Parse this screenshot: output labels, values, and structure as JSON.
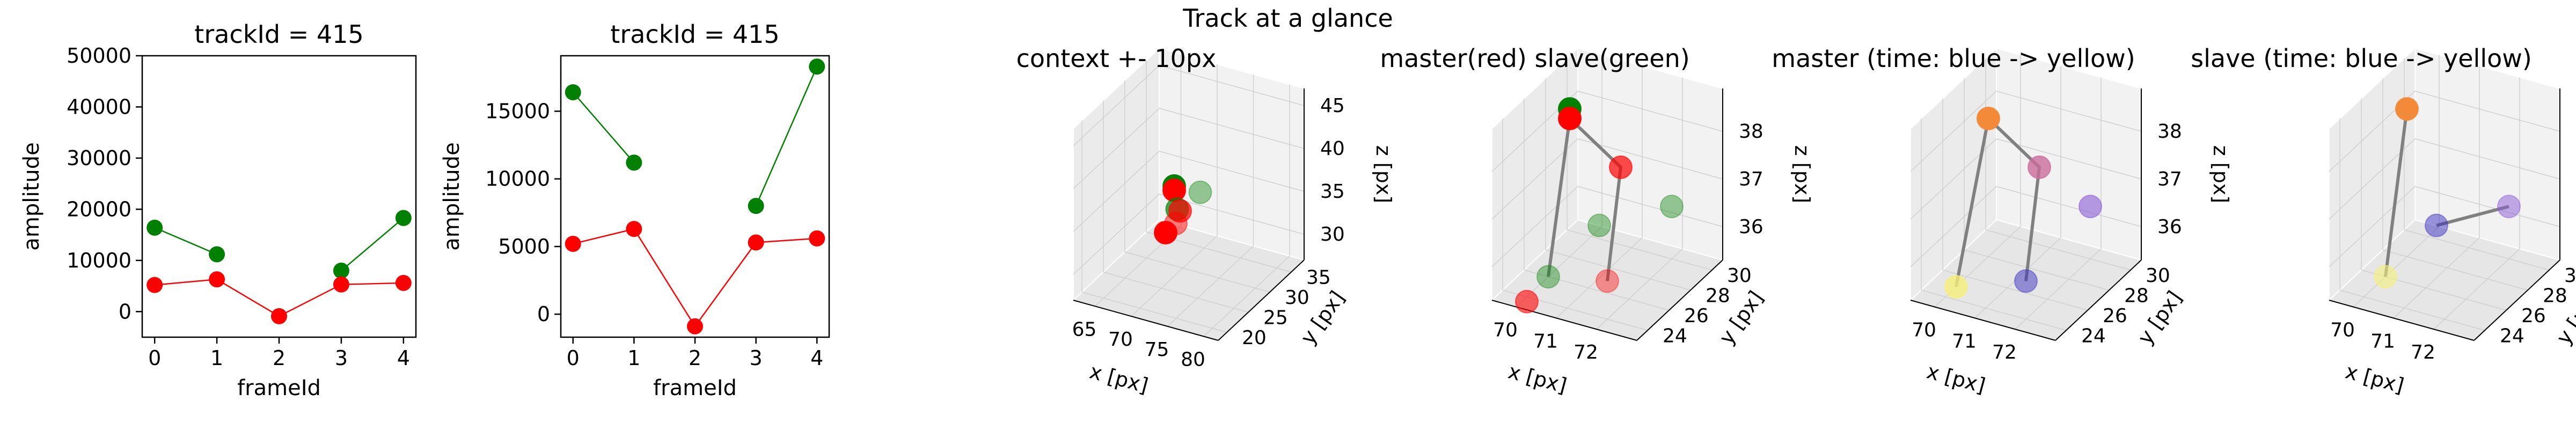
{
  "figure": {
    "suptitle": "Track at a glance"
  },
  "colors": {
    "green": "#008000",
    "red": "#ff0000",
    "line_gray": "#808080",
    "pane_light": "#f2f2f2",
    "pane_mid": "#e6e6e6",
    "pane_dark": "#ebebeb",
    "grid": "#d0d0d0",
    "time_colormap": [
      "#3b2fc0",
      "#8a5ad6",
      "#c96b9a",
      "#f28a3a",
      "#f5f07a"
    ]
  },
  "chart_data": [
    {
      "type": "line",
      "title": "trackId = 415",
      "xlabel": "frameId",
      "ylabel": "amplitude",
      "xlim": [
        -0.2,
        4.2
      ],
      "ylim": [
        -5000,
        50000
      ],
      "xticks": [
        0,
        1,
        2,
        3,
        4
      ],
      "yticks": [
        0,
        10000,
        20000,
        30000,
        40000,
        50000
      ],
      "grid": false,
      "series": [
        {
          "color": "green",
          "segments": [
            [
              [
                0,
                16400
              ],
              [
                1,
                11200
              ]
            ],
            [
              [
                3,
                8000
              ],
              [
                4,
                18300
              ]
            ]
          ]
        },
        {
          "color": "red",
          "segments": [
            [
              [
                0,
                5200
              ],
              [
                1,
                6300
              ],
              [
                2,
                -900
              ],
              [
                3,
                5300
              ],
              [
                4,
                5600
              ]
            ]
          ]
        }
      ]
    },
    {
      "type": "line",
      "title": "trackId = 415",
      "xlabel": "frameId",
      "ylabel": "amplitude",
      "xlim": [
        -0.2,
        4.2
      ],
      "ylim": [
        -1700,
        19100
      ],
      "xticks": [
        0,
        1,
        2,
        3,
        4
      ],
      "yticks": [
        0,
        5000,
        10000,
        15000
      ],
      "grid": false,
      "series": [
        {
          "color": "green",
          "segments": [
            [
              [
                0,
                16400
              ],
              [
                1,
                11200
              ]
            ],
            [
              [
                3,
                8000
              ],
              [
                4,
                18300
              ]
            ]
          ]
        },
        {
          "color": "red",
          "segments": [
            [
              [
                0,
                5200
              ],
              [
                1,
                6300
              ],
              [
                2,
                -900
              ],
              [
                3,
                5300
              ],
              [
                4,
                5600
              ]
            ]
          ]
        }
      ]
    },
    {
      "type": "scatter3d",
      "title": "context +- 10px",
      "xlabel": "x [px]",
      "ylabel": "y [px]",
      "zlabel": "z [px]",
      "xlim": [
        62,
        82
      ],
      "ylim": [
        18,
        38
      ],
      "zlim": [
        27,
        47
      ],
      "xticks": [
        65,
        70,
        75,
        80
      ],
      "yticks": [
        20,
        25,
        30,
        35
      ],
      "zticks": [
        30,
        35,
        40,
        45
      ],
      "points": [
        {
          "x": 70,
          "y": 28,
          "z": 37.5,
          "color": "green",
          "alpha": 1.0
        },
        {
          "x": 70,
          "y": 28,
          "z": 37,
          "color": "red",
          "alpha": 1.0
        },
        {
          "x": 71,
          "y": 27,
          "z": 35.5,
          "color": "green",
          "alpha": 0.7
        },
        {
          "x": 72,
          "y": 26,
          "z": 36,
          "color": "red",
          "alpha": 0.7
        },
        {
          "x": 73,
          "y": 29,
          "z": 37,
          "color": "green",
          "alpha": 0.4
        },
        {
          "x": 72,
          "y": 25,
          "z": 35,
          "color": "red",
          "alpha": 0.5
        },
        {
          "x": 70,
          "y": 26,
          "z": 33,
          "color": "red",
          "alpha": 1.0
        }
      ]
    },
    {
      "type": "scatter3d",
      "title": "master(red) slave(green)",
      "xlabel": "x [px]",
      "ylabel": "y [px]",
      "zlabel": "z [px]",
      "xlim": [
        69.4,
        73
      ],
      "ylim": [
        23,
        31
      ],
      "zlim": [
        35.3,
        38.9
      ],
      "xticks": [
        70,
        71,
        72
      ],
      "yticks": [
        24,
        26,
        28,
        30
      ],
      "zticks": [
        36,
        37,
        38
      ],
      "track": [
        [
          70,
          28,
          38.2
        ],
        [
          71,
          29,
          37.2
        ],
        [
          72,
          24,
          36.1
        ]
      ],
      "track2": [
        [
          70,
          28,
          38.2
        ],
        [
          70,
          26,
          35.3
        ]
      ],
      "points": [
        {
          "x": 70,
          "y": 28,
          "z": 38.4,
          "color": "green",
          "alpha": 1.0
        },
        {
          "x": 70,
          "y": 28,
          "z": 38.2,
          "color": "red",
          "alpha": 1.0
        },
        {
          "x": 71,
          "y": 29,
          "z": 37.2,
          "color": "red",
          "alpha": 0.7
        },
        {
          "x": 71,
          "y": 27,
          "z": 36.4,
          "color": "green",
          "alpha": 0.4
        },
        {
          "x": 72,
          "y": 30,
          "z": 36.4,
          "color": "green",
          "alpha": 0.4
        },
        {
          "x": 72,
          "y": 24,
          "z": 36.1,
          "color": "red",
          "alpha": 0.4
        },
        {
          "x": 70,
          "y": 26,
          "z": 35.3,
          "color": "green",
          "alpha": 0.4
        },
        {
          "x": 70,
          "y": 24,
          "z": 35.2,
          "color": "red",
          "alpha": 0.6
        }
      ]
    },
    {
      "type": "scatter3d",
      "title": "master (time: blue -> yellow)",
      "xlabel": "x [px]",
      "ylabel": "y [px]",
      "zlabel": "z [px]",
      "xlim": [
        69.4,
        73
      ],
      "ylim": [
        23,
        31
      ],
      "zlim": [
        35.3,
        38.9
      ],
      "xticks": [
        70,
        71,
        72
      ],
      "yticks": [
        24,
        26,
        28,
        30
      ],
      "zticks": [
        36,
        37,
        38
      ],
      "track": [
        [
          70,
          28,
          38.2
        ],
        [
          71,
          29,
          37.2
        ],
        [
          72,
          24,
          36.1
        ]
      ],
      "track2": [
        [
          70,
          28,
          38.2
        ],
        [
          70,
          25,
          35.3
        ]
      ],
      "points": [
        {
          "x": 70,
          "y": 28,
          "z": 38.2,
          "color": "#f28a3a",
          "alpha": 1.0
        },
        {
          "x": 71,
          "y": 29,
          "z": 37.2,
          "color": "#c96b9a",
          "alpha": 0.8
        },
        {
          "x": 72,
          "y": 30,
          "z": 36.4,
          "color": "#8a5ad6",
          "alpha": 0.6
        },
        {
          "x": 72,
          "y": 24,
          "z": 36.1,
          "color": "#3b2fc0",
          "alpha": 0.5
        },
        {
          "x": 70,
          "y": 25,
          "z": 35.3,
          "color": "#f5f07a",
          "alpha": 0.8
        }
      ]
    },
    {
      "type": "scatter3d",
      "title": "slave (time: blue -> yellow)",
      "xlabel": "x [px]",
      "ylabel": "y [px]",
      "zlabel": "z [px]",
      "xlim": [
        69.4,
        73
      ],
      "ylim": [
        23,
        31
      ],
      "zlim": [
        35.3,
        38.9
      ],
      "xticks": [
        70,
        71,
        72
      ],
      "yticks": [
        24,
        26,
        28,
        30
      ],
      "zticks": [
        36,
        37,
        38
      ],
      "track": [
        [
          71,
          27,
          36.4
        ],
        [
          72,
          30,
          36.4
        ]
      ],
      "track2": [
        [
          70,
          28,
          38.4
        ],
        [
          70,
          26,
          35.3
        ]
      ],
      "points": [
        {
          "x": 70,
          "y": 28,
          "z": 38.4,
          "color": "#f28a3a",
          "alpha": 1.0
        },
        {
          "x": 71,
          "y": 27,
          "z": 36.4,
          "color": "#3b2fc0",
          "alpha": 0.5
        },
        {
          "x": 72,
          "y": 30,
          "z": 36.4,
          "color": "#8a5ad6",
          "alpha": 0.5
        },
        {
          "x": 70,
          "y": 26,
          "z": 35.3,
          "color": "#f5f07a",
          "alpha": 0.6
        }
      ]
    }
  ]
}
